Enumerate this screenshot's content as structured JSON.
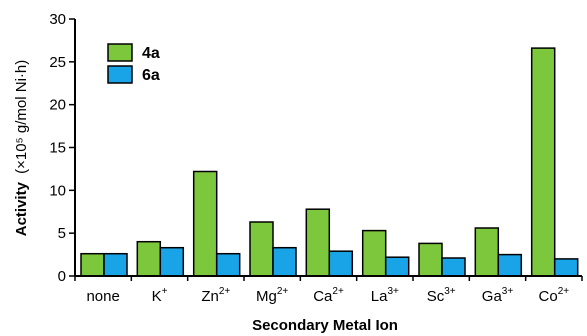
{
  "chart_data": {
    "type": "bar",
    "xlabel": "Secondary Metal Ion",
    "ylabel_main": "Activity",
    "ylabel_unit": "(×10⁵ g/mol Ni·h)",
    "ylim": [
      0,
      30
    ],
    "yticks": [
      0,
      5,
      10,
      15,
      20,
      25,
      30
    ],
    "categories": [
      {
        "base": "none",
        "sup": ""
      },
      {
        "base": "K",
        "sup": "+"
      },
      {
        "base": "Zn",
        "sup": "2+"
      },
      {
        "base": "Mg",
        "sup": "2+"
      },
      {
        "base": "Ca",
        "sup": "2+"
      },
      {
        "base": "La",
        "sup": "3+"
      },
      {
        "base": "Sc",
        "sup": "3+"
      },
      {
        "base": "Ga",
        "sup": "3+"
      },
      {
        "base": "Co",
        "sup": "2+"
      }
    ],
    "series": [
      {
        "name": "4a",
        "color": "#7dc73c",
        "values": [
          2.6,
          4.0,
          12.2,
          6.3,
          7.8,
          5.3,
          3.8,
          5.6,
          26.6
        ]
      },
      {
        "name": "6a",
        "color": "#1aa4e8",
        "values": [
          2.6,
          3.3,
          2.6,
          3.3,
          2.9,
          2.2,
          2.1,
          2.5,
          2.0
        ]
      }
    ],
    "legend_position": "top-left",
    "grid": false
  }
}
